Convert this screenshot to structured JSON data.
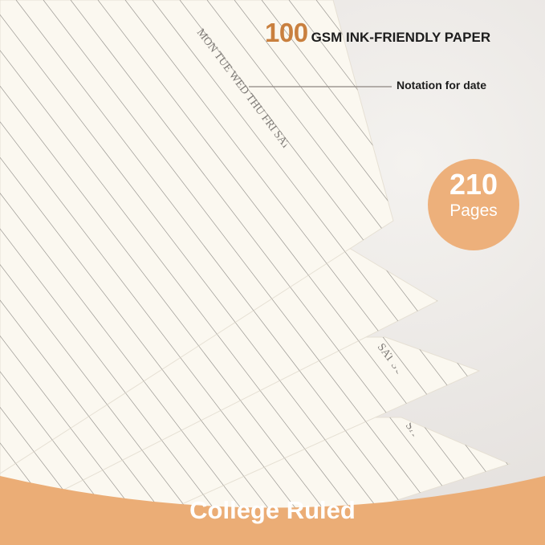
{
  "headline": {
    "number": "100",
    "text": "GSM INK-FRIENDLY PAPER"
  },
  "callout": {
    "label": "Notation for date"
  },
  "badge": {
    "number": "210",
    "label": "Pages"
  },
  "pages": {
    "top_days": "MON TUE WED THU FRI SAT SUN",
    "lower_days": [
      "FRI SAT SUN",
      "SAT SUN",
      "SAT SUN"
    ]
  },
  "footer": {
    "label": "College Ruled"
  },
  "colors": {
    "accent": "#edb07b",
    "band": "#ebad76",
    "headline_number": "#c9803f",
    "paper": "#fbf8f0",
    "background": "#ece9e6"
  }
}
